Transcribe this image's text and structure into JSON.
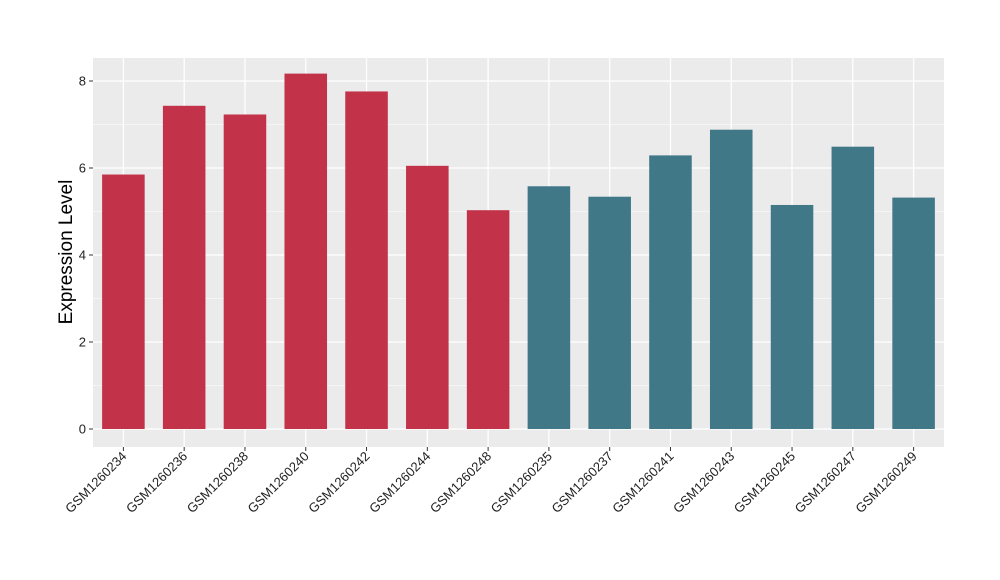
{
  "chart_data": {
    "type": "bar",
    "title": "",
    "xlabel": "",
    "ylabel": "Expression Level",
    "ylim": [
      0,
      8.6
    ],
    "yticks": [
      0,
      2,
      4,
      6,
      8
    ],
    "grid": true,
    "legend": "none",
    "categories": [
      "GSM1260234",
      "GSM1260236",
      "GSM1260238",
      "GSM1260240",
      "GSM1260242",
      "GSM1260244",
      "GSM1260248",
      "GSM1260235",
      "GSM1260237",
      "GSM1260241",
      "GSM1260243",
      "GSM1260245",
      "GSM1260247",
      "GSM1260249"
    ],
    "values": [
      5.85,
      7.43,
      7.23,
      8.17,
      7.76,
      6.05,
      5.03,
      5.58,
      5.34,
      6.29,
      6.88,
      5.15,
      6.49,
      5.32
    ],
    "groups": [
      0,
      0,
      0,
      0,
      0,
      0,
      0,
      1,
      1,
      1,
      1,
      1,
      1,
      1
    ],
    "group_colors": [
      "#C23249",
      "#417888"
    ],
    "panel_background": "#EBEBEB",
    "grid_color": "#FFFFFF"
  }
}
